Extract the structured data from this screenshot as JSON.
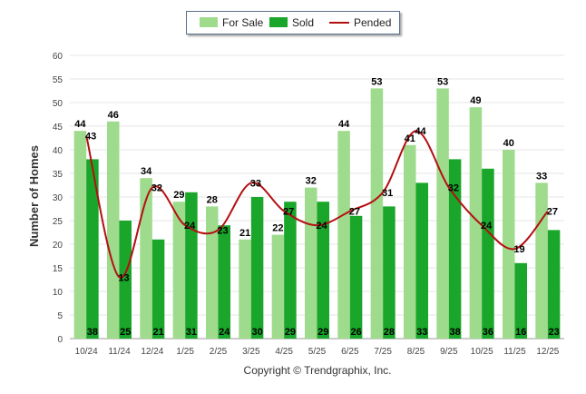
{
  "chart_data": {
    "type": "bar",
    "ylabel": "Number of Homes",
    "xlabel": "",
    "ylim": [
      0,
      60
    ],
    "ytick_step": 5,
    "categories": [
      "10/24",
      "11/24",
      "12/24",
      "1/25",
      "2/25",
      "3/25",
      "4/25",
      "5/25",
      "6/25",
      "7/25",
      "8/25",
      "9/25",
      "10/25",
      "11/25",
      "12/25"
    ],
    "series": [
      {
        "name": "For Sale",
        "kind": "bar",
        "color": "#9edb8c",
        "values": [
          44,
          46,
          34,
          29,
          28,
          21,
          22,
          32,
          44,
          53,
          41,
          53,
          49,
          40,
          33
        ]
      },
      {
        "name": "Sold",
        "kind": "bar",
        "color": "#1aa62a",
        "values": [
          38,
          25,
          21,
          31,
          24,
          30,
          29,
          29,
          26,
          28,
          33,
          38,
          36,
          16,
          23
        ]
      },
      {
        "name": "Pended",
        "kind": "line",
        "color": "#b40f12",
        "values": [
          43,
          13,
          32,
          24,
          23,
          33,
          27,
          24,
          27,
          31,
          44,
          32,
          24,
          19,
          27
        ]
      }
    ],
    "legend": "top-center",
    "credit": "Copyright © Trendgraphix, Inc."
  }
}
